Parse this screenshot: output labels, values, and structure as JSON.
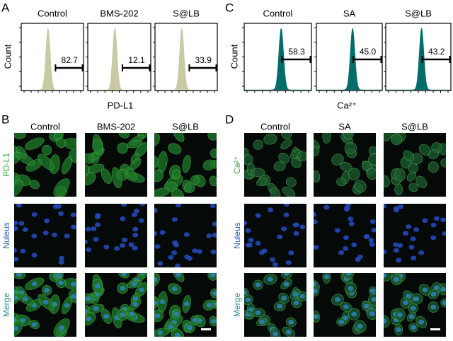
{
  "panels": [
    {
      "label": "A",
      "y_label": "Count",
      "x_label": "PD-L1",
      "plots": [
        {
          "title": "Control",
          "gate": "82.7"
        },
        {
          "title": "BMS-202",
          "gate": "12.1"
        },
        {
          "title": "S@LB",
          "gate": "33.9"
        }
      ]
    },
    {
      "label": "B",
      "columns": [
        "Control",
        "BMS-202",
        "S@LB"
      ],
      "rows": [
        "PD-L1",
        "Nuleus",
        "Merge"
      ]
    },
    {
      "label": "C",
      "y_label": "Count",
      "x_label": "Ca²⁺",
      "plots": [
        {
          "title": "Control",
          "gate": "58.3"
        },
        {
          "title": "SA",
          "gate": "45.0"
        },
        {
          "title": "S@LB",
          "gate": "43.2"
        }
      ]
    },
    {
      "label": "D",
      "columns": [
        "Control",
        "SA",
        "S@LB"
      ],
      "rows": [
        "Ca²⁺",
        "Nuleus",
        "Merge"
      ]
    }
  ]
}
